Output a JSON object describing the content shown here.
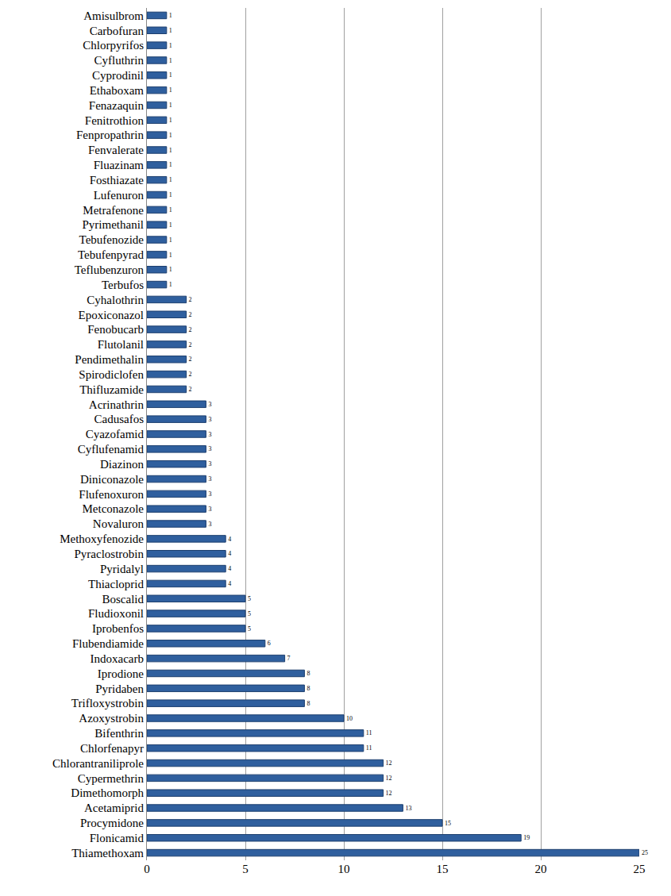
{
  "chart_data": {
    "type": "bar",
    "orientation": "horizontal",
    "categories": [
      "Amisulbrom",
      "Carbofuran",
      "Chlorpyrifos",
      "Cyfluthrin",
      "Cyprodinil",
      "Ethaboxam",
      "Fenazaquin",
      "Fenitrothion",
      "Fenpropathrin",
      "Fenvalerate",
      "Fluazinam",
      "Fosthiazate",
      "Lufenuron",
      "Metrafenone",
      "Pyrimethanil",
      "Tebufenozide",
      "Tebufenpyrad",
      "Teflubenzuron",
      "Terbufos",
      "Cyhalothrin",
      "Epoxiconazol",
      "Fenobucarb",
      "Flutolanil",
      "Pendimethalin",
      "Spirodiclofen",
      "Thifluzamide",
      "Acrinathrin",
      "Cadusafos",
      "Cyazofamid",
      "Cyflufenamid",
      "Diazinon",
      "Diniconazole",
      "Flufenoxuron",
      "Metconazole",
      "Novaluron",
      "Methoxyfenozide",
      "Pyraclostrobin",
      "Pyridalyl",
      "Thiacloprid",
      "Boscalid",
      "Fludioxonil",
      "Iprobenfos",
      "Flubendiamide",
      "Indoxacarb",
      "Iprodione",
      "Pyridaben",
      "Trifloxystrobin",
      "Azoxystrobin",
      "Bifenthrin",
      "Chlorfenapyr",
      "Chlorantraniliprole",
      "Cypermethrin",
      "Dimethomorph",
      "Acetamiprid",
      "Procymidone",
      "Flonicamid",
      "Thiamethoxam"
    ],
    "values": [
      1,
      1,
      1,
      1,
      1,
      1,
      1,
      1,
      1,
      1,
      1,
      1,
      1,
      1,
      1,
      1,
      1,
      1,
      1,
      2,
      2,
      2,
      2,
      2,
      2,
      2,
      3,
      3,
      3,
      3,
      3,
      3,
      3,
      3,
      3,
      4,
      4,
      4,
      4,
      5,
      5,
      5,
      6,
      7,
      8,
      8,
      8,
      10,
      11,
      11,
      12,
      12,
      12,
      13,
      15,
      19,
      25
    ],
    "color": "#2f5f9e",
    "xlim": [
      0,
      25
    ],
    "xticks": [
      0,
      5,
      10,
      15,
      20,
      25
    ],
    "grid": true,
    "data_labels": true
  }
}
